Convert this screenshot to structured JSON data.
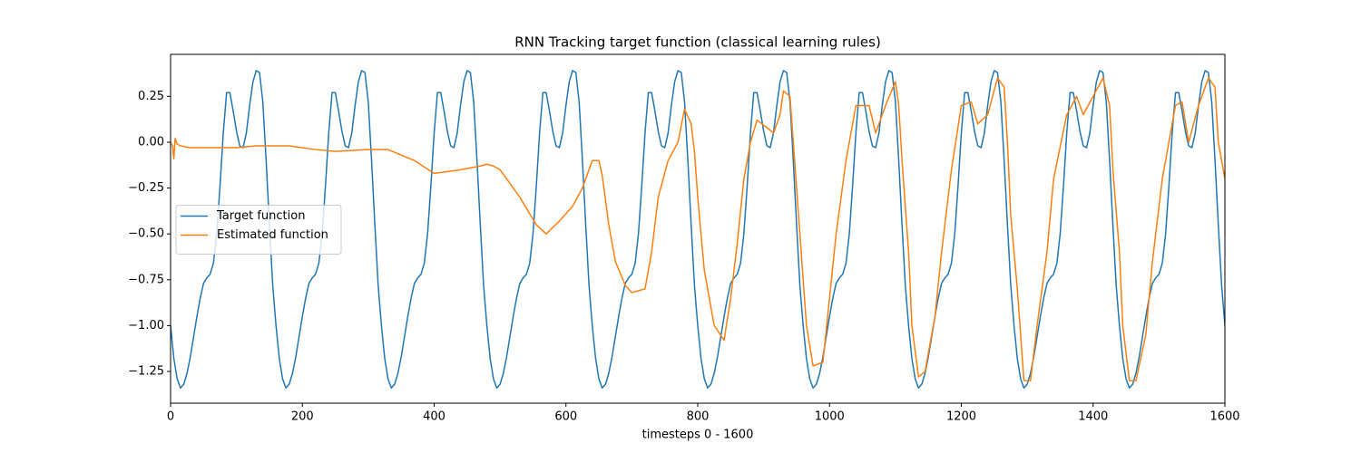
{
  "chart_data": {
    "type": "line",
    "title": "RNN Tracking target function (classical learning rules)",
    "x_label": "timesteps 0 - 1600",
    "xlim": [
      0,
      1600
    ],
    "xticks": [
      0,
      200,
      400,
      600,
      800,
      1000,
      1200,
      1400,
      1600
    ],
    "ylim": [
      -1.423,
      0.479
    ],
    "yticks": [
      {
        "value": -1.25,
        "label": "−1.25"
      },
      {
        "value": -1.0,
        "label": "−1.00"
      },
      {
        "value": -0.75,
        "label": "−0.75"
      },
      {
        "value": -0.5,
        "label": "−0.50"
      },
      {
        "value": -0.25,
        "label": "−0.25"
      },
      {
        "value": 0,
        "label": "0.00"
      },
      0.25
    ],
    "grid": false,
    "legend": "center left",
    "series": [
      {
        "name": "Target function",
        "color": "#1f77b4",
        "x": [
          0,
          5,
          10,
          15,
          20,
          25,
          30,
          35,
          40,
          45,
          50,
          55,
          60,
          65,
          70,
          75,
          80,
          85,
          90,
          95,
          100,
          105,
          110,
          115,
          120,
          125,
          130,
          135,
          140,
          145,
          150,
          155,
          160,
          165,
          170,
          175,
          180,
          185,
          190,
          195,
          200,
          205,
          210,
          215,
          220,
          225,
          230,
          235,
          240,
          245,
          250,
          255,
          260,
          265,
          270,
          275,
          280,
          285,
          290,
          295,
          300,
          305,
          310,
          315,
          320,
          325,
          330,
          335,
          340,
          345,
          350,
          355,
          360,
          365,
          370,
          375,
          380,
          385,
          390,
          395,
          400,
          405,
          410,
          415,
          420,
          425,
          430,
          435,
          440,
          445,
          450,
          455,
          460,
          465,
          470,
          475,
          480,
          485,
          490,
          495,
          500,
          505,
          510,
          515,
          520,
          525,
          530,
          535,
          540,
          545,
          550,
          555,
          560,
          565,
          570,
          575,
          580,
          585,
          590,
          595,
          600,
          605,
          610,
          615,
          620,
          625,
          630,
          635,
          640,
          645,
          650,
          655,
          660,
          665,
          670,
          675,
          680,
          685,
          690,
          695,
          700,
          705,
          710,
          715,
          720,
          725,
          730,
          735,
          740,
          745,
          750,
          755,
          760,
          765,
          770,
          775,
          780,
          785,
          790,
          795,
          800,
          805,
          810,
          815,
          820,
          825,
          830,
          835,
          840,
          845,
          850,
          855,
          860,
          865,
          870,
          875,
          880,
          885,
          890,
          895,
          900,
          905,
          910,
          915,
          920,
          925,
          930,
          935,
          940,
          945,
          950,
          955,
          960,
          965,
          970,
          975,
          980,
          985,
          990,
          995,
          1000,
          1005,
          1010,
          1015,
          1020,
          1025,
          1030,
          1035,
          1040,
          1045,
          1050,
          1055,
          1060,
          1065,
          1070,
          1075,
          1080,
          1085,
          1090,
          1095,
          1100,
          1105,
          1110,
          1115,
          1120,
          1125,
          1130,
          1135,
          1140,
          1145,
          1150,
          1155,
          1160,
          1165,
          1170,
          1175,
          1180,
          1185,
          1190,
          1195,
          1200,
          1205,
          1210,
          1215,
          1220,
          1225,
          1230,
          1235,
          1240,
          1245,
          1250,
          1255,
          1260,
          1265,
          1270,
          1275,
          1280,
          1285,
          1290,
          1295,
          1300,
          1305,
          1310,
          1315,
          1320,
          1325,
          1330,
          1335,
          1340,
          1345,
          1350,
          1355,
          1360,
          1365,
          1370,
          1375,
          1380,
          1385,
          1390,
          1395,
          1400,
          1405,
          1410,
          1415,
          1420,
          1425,
          1430,
          1435,
          1440,
          1445,
          1450,
          1455,
          1460,
          1465,
          1470,
          1475,
          1480,
          1485,
          1490,
          1495,
          1500,
          1505,
          1510,
          1515,
          1520,
          1525,
          1530,
          1535,
          1540,
          1545,
          1550,
          1555,
          1560,
          1565,
          1570,
          1575,
          1580,
          1585,
          1590,
          1595,
          1600
        ],
        "values": [
          -1.0,
          -1.18,
          -1.29,
          -1.34,
          -1.32,
          -1.26,
          -1.17,
          -1.06,
          -0.95,
          -0.85,
          -0.77,
          -0.74,
          -0.72,
          -0.66,
          -0.5,
          -0.24,
          0.05,
          0.27,
          0.27,
          0.17,
          0.06,
          -0.02,
          -0.03,
          0.05,
          0.2,
          0.33,
          0.39,
          0.38,
          0.22,
          -0.1,
          -0.45,
          -0.78,
          -1.0,
          -1.18,
          -1.29,
          -1.34,
          -1.32,
          -1.26,
          -1.17,
          -1.06,
          -0.95,
          -0.85,
          -0.77,
          -0.74,
          -0.72,
          -0.66,
          -0.5,
          -0.24,
          0.05,
          0.27,
          0.27,
          0.17,
          0.06,
          -0.02,
          -0.03,
          0.05,
          0.2,
          0.33,
          0.39,
          0.38,
          0.22,
          -0.1,
          -0.45,
          -0.78,
          -1.0,
          -1.18,
          -1.29,
          -1.34,
          -1.32,
          -1.26,
          -1.17,
          -1.06,
          -0.95,
          -0.85,
          -0.77,
          -0.74,
          -0.72,
          -0.66,
          -0.5,
          -0.24,
          0.05,
          0.27,
          0.27,
          0.17,
          0.06,
          -0.02,
          -0.03,
          0.05,
          0.2,
          0.33,
          0.39,
          0.38,
          0.22,
          -0.1,
          -0.45,
          -0.78,
          -1.0,
          -1.18,
          -1.29,
          -1.34,
          -1.32,
          -1.26,
          -1.17,
          -1.06,
          -0.95,
          -0.85,
          -0.77,
          -0.74,
          -0.72,
          -0.66,
          -0.5,
          -0.24,
          0.05,
          0.27,
          0.27,
          0.17,
          0.06,
          -0.02,
          -0.03,
          0.05,
          0.2,
          0.33,
          0.39,
          0.38,
          0.22,
          -0.1,
          -0.45,
          -0.78,
          -1.0,
          -1.18,
          -1.29,
          -1.34,
          -1.32,
          -1.26,
          -1.17,
          -1.06,
          -0.95,
          -0.85,
          -0.77,
          -0.74,
          -0.72,
          -0.66,
          -0.5,
          -0.24,
          0.05,
          0.27,
          0.27,
          0.17,
          0.06,
          -0.02,
          -0.03,
          0.05,
          0.2,
          0.33,
          0.39,
          0.38,
          0.22,
          -0.1,
          -0.45,
          -0.78,
          -1.0,
          -1.18,
          -1.29,
          -1.34,
          -1.32,
          -1.26,
          -1.17,
          -1.06,
          -0.95,
          -0.85,
          -0.77,
          -0.74,
          -0.72,
          -0.66,
          -0.5,
          -0.24,
          0.05,
          0.27,
          0.27,
          0.17,
          0.06,
          -0.02,
          -0.03,
          0.05,
          0.2,
          0.33,
          0.39,
          0.38,
          0.22,
          -0.1,
          -0.45,
          -0.78,
          -1.0,
          -1.18,
          -1.29,
          -1.34,
          -1.32,
          -1.26,
          -1.17,
          -1.06,
          -0.95,
          -0.85,
          -0.77,
          -0.74,
          -0.72,
          -0.66,
          -0.5,
          -0.24,
          0.05,
          0.27,
          0.27,
          0.17,
          0.06,
          -0.02,
          -0.03,
          0.05,
          0.2,
          0.33,
          0.39,
          0.38,
          0.22,
          -0.1,
          -0.45,
          -0.78,
          -1.0,
          -1.18,
          -1.29,
          -1.34,
          -1.32,
          -1.26,
          -1.17,
          -1.06,
          -0.95,
          -0.85,
          -0.77,
          -0.74,
          -0.72,
          -0.66,
          -0.5,
          -0.24,
          0.05,
          0.27,
          0.27,
          0.17,
          0.06,
          -0.02,
          -0.03,
          0.05,
          0.2,
          0.33,
          0.39,
          0.38,
          0.22,
          -0.1,
          -0.45,
          -0.78,
          -1.0,
          -1.18,
          -1.29,
          -1.34,
          -1.32,
          -1.26,
          -1.17,
          -1.06,
          -0.95,
          -0.85,
          -0.77,
          -0.74,
          -0.72,
          -0.66,
          -0.5,
          -0.24,
          0.05,
          0.27,
          0.27,
          0.17,
          0.06,
          -0.02,
          -0.03,
          0.05,
          0.2,
          0.33,
          0.39,
          0.38,
          0.22,
          -0.1,
          -0.45,
          -0.78,
          -1.0,
          -1.18,
          -1.29,
          -1.34,
          -1.32,
          -1.26,
          -1.17,
          -1.06,
          -0.95,
          -0.85,
          -0.77,
          -0.74,
          -0.72,
          -0.66,
          -0.5,
          -0.24,
          0.05,
          0.27,
          0.27,
          0.17,
          0.06,
          -0.02,
          -0.03,
          0.05,
          0.2,
          0.33,
          0.39,
          0.38,
          0.22,
          -0.1,
          -0.45,
          -0.78,
          -1.0
        ]
      },
      {
        "name": "Estimated function",
        "color": "#ff7f0e",
        "x": [
          0,
          3,
          5,
          7,
          10,
          15,
          30,
          60,
          100,
          130,
          180,
          220,
          250,
          300,
          330,
          370,
          400,
          440,
          470,
          480,
          490,
          500,
          530,
          555,
          570,
          590,
          610,
          625,
          635,
          640,
          650,
          655,
          665,
          675,
          690,
          700,
          720,
          730,
          740,
          755,
          770,
          780,
          790,
          795,
          800,
          810,
          825,
          840,
          850,
          860,
          870,
          880,
          890,
          905,
          915,
          925,
          930,
          940,
          945,
          955,
          965,
          975,
          990,
          1000,
          1010,
          1025,
          1040,
          1060,
          1070,
          1085,
          1100,
          1105,
          1110,
          1120,
          1125,
          1135,
          1145,
          1160,
          1170,
          1185,
          1200,
          1215,
          1225,
          1240,
          1255,
          1265,
          1270,
          1275,
          1285,
          1295,
          1305,
          1315,
          1330,
          1340,
          1360,
          1375,
          1385,
          1400,
          1415,
          1425,
          1430,
          1440,
          1445,
          1455,
          1465,
          1480,
          1490,
          1505,
          1525,
          1535,
          1545,
          1560,
          1575,
          1585,
          1590,
          1600
        ],
        "values": [
          0,
          -0.02,
          -0.09,
          0.02,
          -0.01,
          -0.02,
          -0.03,
          -0.03,
          -0.03,
          -0.02,
          -0.02,
          -0.04,
          -0.05,
          -0.04,
          -0.04,
          -0.1,
          -0.17,
          -0.15,
          -0.13,
          -0.12,
          -0.13,
          -0.15,
          -0.3,
          -0.45,
          -0.5,
          -0.43,
          -0.35,
          -0.25,
          -0.15,
          -0.1,
          -0.1,
          -0.18,
          -0.45,
          -0.65,
          -0.78,
          -0.82,
          -0.8,
          -0.6,
          -0.3,
          -0.1,
          0.0,
          0.18,
          0.1,
          -0.05,
          -0.3,
          -0.7,
          -1.0,
          -1.08,
          -0.85,
          -0.55,
          -0.2,
          0.0,
          0.12,
          0.08,
          0.05,
          0.15,
          0.28,
          0.25,
          0.0,
          -0.5,
          -1.0,
          -1.22,
          -1.2,
          -0.85,
          -0.5,
          -0.1,
          0.2,
          0.2,
          0.05,
          0.2,
          0.33,
          0.2,
          -0.1,
          -0.6,
          -1.0,
          -1.28,
          -1.25,
          -0.95,
          -0.6,
          -0.15,
          0.2,
          0.22,
          0.1,
          0.15,
          0.35,
          0.3,
          0.0,
          -0.4,
          -0.8,
          -1.3,
          -1.3,
          -1.0,
          -0.6,
          -0.2,
          0.15,
          0.25,
          0.15,
          0.25,
          0.35,
          0.2,
          -0.15,
          -0.6,
          -1.0,
          -1.3,
          -1.3,
          -1.05,
          -0.65,
          -0.2,
          0.2,
          0.22,
          0.0,
          0.2,
          0.35,
          0.3,
          0.0,
          -0.2
        ]
      }
    ]
  }
}
